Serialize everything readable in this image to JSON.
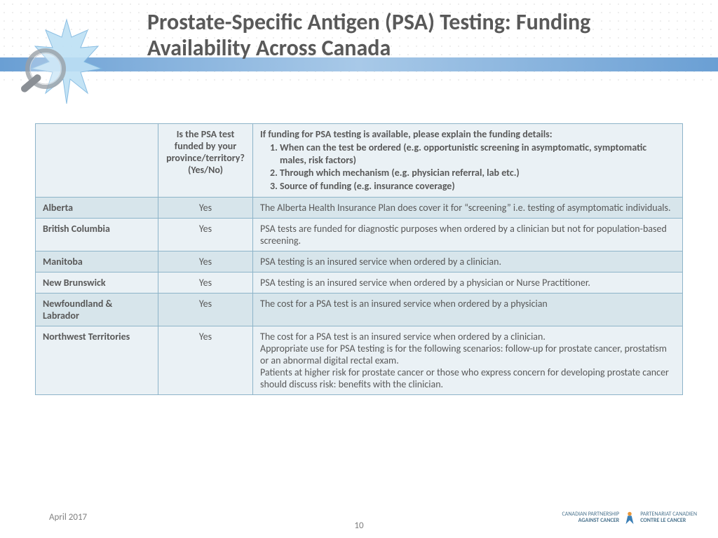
{
  "title": "Prostate-Specific Antigen (PSA) Testing: Funding Availability Across Canada",
  "header": {
    "col1": "",
    "col2": "Is the PSA test funded by your province/territory? (Yes/No)",
    "col3_intro": "If funding for PSA testing is available, please explain the funding details:",
    "col3_items": [
      "When can the test be ordered (e.g. opportunistic screening in asymptomatic, symptomatic males, risk factors)",
      "Through which mechanism (e.g. physician referral, lab etc.)",
      "Source of funding (e.g. insurance coverage)"
    ]
  },
  "rows": [
    {
      "province": "Alberta",
      "funded": "Yes",
      "details": "The Alberta Health Insurance Plan does cover it for “screening” i.e. testing of asymptomatic individuals."
    },
    {
      "province": "British Columbia",
      "funded": "Yes",
      "details": "PSA tests are funded for diagnostic purposes when ordered by a clinician but not  for population-based screening."
    },
    {
      "province": "Manitoba",
      "funded": "Yes",
      "details": "PSA testing is an insured service when ordered by a clinician."
    },
    {
      "province": "New Brunswick",
      "funded": "Yes",
      "details": "PSA testing is an insured service when ordered by a physician or Nurse Practitioner."
    },
    {
      "province": "Newfoundland & Labrador",
      "funded": "Yes",
      "details": "The cost for a PSA test is an insured service when ordered by a physician"
    },
    {
      "province": "Northwest Territories",
      "funded": "Yes",
      "details": "The cost for a PSA test is an insured service when ordered by a clinician.\nAppropriate use for PSA testing is for the following scenarios: follow-up for prostate cancer, prostatism or an abnormal digital rectal exam.\nPatients at higher risk for prostate cancer or those who express concern for developing prostate cancer should discuss risk: benefits with the clinician."
    }
  ],
  "footer": {
    "date": "April 2017",
    "page": "10",
    "logo_left_line1": "CANADIAN PARTNERSHIP",
    "logo_left_line2": "AGAINST CANCER",
    "logo_right_line1": "PARTENARIAT CANADIEN",
    "logo_right_line2": "CONTRE LE CANCER"
  },
  "colors": {
    "border": "#8db4c9",
    "head_bg": "#eaf1f5",
    "alt_bg": "#d7e5eb",
    "text": "#595959",
    "bar": "#6a9fd4",
    "leaf": "#a8d0ec"
  }
}
